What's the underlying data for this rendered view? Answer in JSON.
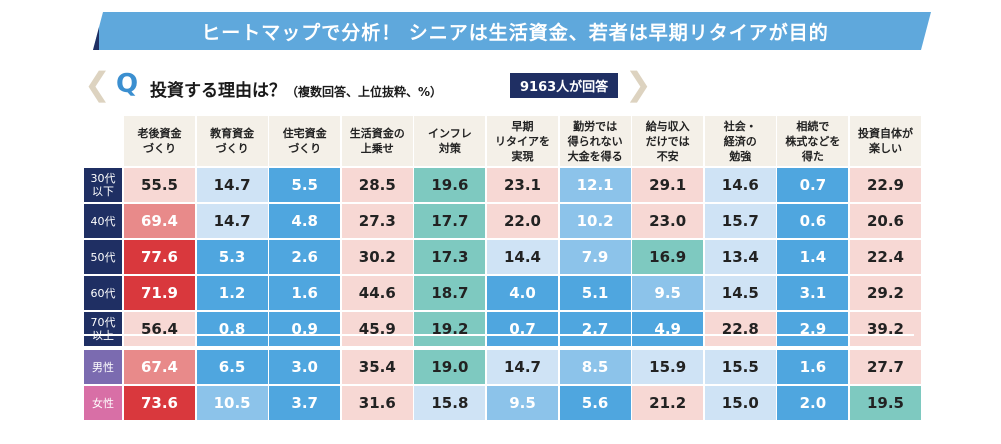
{
  "banner": {
    "title": "ヒートマップで分析！ シニアは生活資金、若者は早期リタイアが目的"
  },
  "question": {
    "q_mark": "Q",
    "text": "投資する理由は？",
    "sub": "（複数回答、上位抜粋、%）",
    "badge": "9163人が回答"
  },
  "chart_data": {
    "type": "heatmap",
    "units": "%",
    "columns": [
      "老後資金\nづくり",
      "教育資金\nづくり",
      "住宅資金\nづくり",
      "生活資金の\n上乗せ",
      "インフレ\n対策",
      "早期\nリタイアを\n実現",
      "勤労では\n得られない\n大金を得る",
      "給与収入\nだけでは\n不安",
      "社会・\n経済の\n勉強",
      "相続で\n株式などを\n得た",
      "投資自体が\n楽しい"
    ],
    "rows": [
      {
        "label": "30代\n以下",
        "group": "age",
        "values": [
          55.5,
          14.7,
          5.5,
          28.5,
          19.6,
          23.1,
          12.1,
          29.1,
          14.6,
          0.7,
          22.9
        ]
      },
      {
        "label": "40代",
        "group": "age",
        "values": [
          69.4,
          14.7,
          4.8,
          27.3,
          17.7,
          22.0,
          10.2,
          23.0,
          15.7,
          0.6,
          20.6
        ]
      },
      {
        "label": "50代",
        "group": "age",
        "values": [
          77.6,
          5.3,
          2.6,
          30.2,
          17.3,
          14.4,
          7.9,
          16.9,
          13.4,
          1.4,
          22.4
        ]
      },
      {
        "label": "60代",
        "group": "age",
        "values": [
          71.9,
          1.2,
          1.6,
          44.6,
          18.7,
          4.0,
          5.1,
          9.5,
          14.5,
          3.1,
          29.2
        ]
      },
      {
        "label": "70代\n以上",
        "group": "age",
        "values": [
          56.4,
          0.8,
          0.9,
          45.9,
          19.2,
          0.7,
          2.7,
          4.9,
          22.8,
          2.9,
          39.2
        ]
      },
      {
        "label": "男性",
        "group": "gender",
        "values": [
          67.4,
          6.5,
          3.0,
          35.4,
          19.0,
          14.7,
          8.5,
          15.9,
          15.5,
          1.6,
          27.7
        ]
      },
      {
        "label": "女性",
        "group": "gender",
        "values": [
          73.6,
          10.5,
          3.7,
          31.6,
          15.8,
          9.5,
          5.6,
          21.2,
          15.0,
          2.0,
          19.5
        ]
      }
    ],
    "colors": {
      "age_label": "#1f2f63",
      "male_label": "#7b6bb0",
      "female_label": "#d86fa6",
      "red_strong": "#d9383d",
      "red_mid": "#e88a8a",
      "red_light": "#f7d8d4",
      "teal": "#7ec9c0",
      "blue_light": "#cfe3f5",
      "blue_mid": "#8cc3ea",
      "blue_strong": "#4fa6df"
    }
  }
}
